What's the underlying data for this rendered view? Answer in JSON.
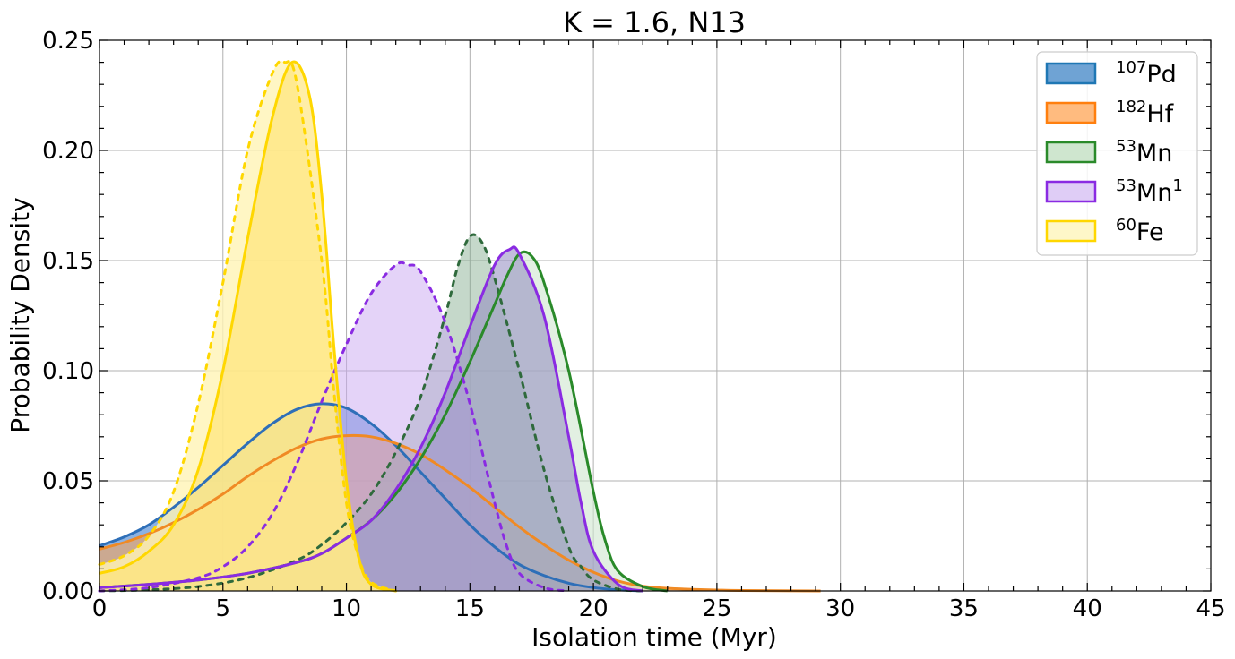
{
  "chart_data": {
    "type": "area",
    "title": "K = 1.6, N13",
    "xlabel": "Isolation time (Myr)",
    "ylabel": "Probability Density",
    "xlim": [
      0,
      45
    ],
    "ylim": [
      0,
      0.25
    ],
    "xticks": [
      "0",
      "5",
      "10",
      "15",
      "20",
      "25",
      "30",
      "35",
      "40",
      "45"
    ],
    "yticks": [
      "0.00",
      "0.05",
      "0.10",
      "0.15",
      "0.20",
      "0.25"
    ],
    "grid": true,
    "legend_position": "top-right",
    "legend": [
      {
        "sup": "107",
        "base": "Pd",
        "post": "",
        "color": "#1f77b4",
        "fill": "#6fa3d4"
      },
      {
        "sup": "182",
        "base": "Hf",
        "post": "",
        "color": "#ff7f0e",
        "fill": "#ffbb7f"
      },
      {
        "sup": "53",
        "base": "Mn",
        "post": "",
        "color": "#2a8a2a",
        "fill": "#cfe6cf"
      },
      {
        "sup": "53",
        "base": "Mn",
        "post": "1",
        "color": "#8a2be2",
        "fill": "#dfcdf6"
      },
      {
        "sup": "60",
        "base": "Fe",
        "post": "",
        "color": "#ffd700",
        "fill": "#fef7c8"
      }
    ],
    "series": [
      {
        "key": "pd_solid",
        "style": "solid",
        "stroke": "#2e6fb8",
        "fill": "#3f7fce",
        "opacity": 0.6,
        "points": [
          [
            0,
            0.0205
          ],
          [
            1,
            0.0245
          ],
          [
            2,
            0.03
          ],
          [
            3,
            0.038
          ],
          [
            4,
            0.047
          ],
          [
            5,
            0.057
          ],
          [
            6,
            0.067
          ],
          [
            7,
            0.076
          ],
          [
            8,
            0.0825
          ],
          [
            9,
            0.085
          ],
          [
            10,
            0.083
          ],
          [
            11,
            0.076
          ],
          [
            12,
            0.066
          ],
          [
            13,
            0.054
          ],
          [
            14,
            0.042
          ],
          [
            15,
            0.03
          ],
          [
            16,
            0.02
          ],
          [
            17,
            0.012
          ],
          [
            18,
            0.007
          ],
          [
            19,
            0.0035
          ],
          [
            20,
            0.0015
          ],
          [
            21,
            0.0005
          ],
          [
            22,
            0.0
          ]
        ]
      },
      {
        "key": "hf_solid",
        "style": "solid",
        "stroke": "#f08a24",
        "fill": "#f5a35c",
        "opacity": 0.6,
        "points": [
          [
            0,
            0.019
          ],
          [
            1,
            0.022
          ],
          [
            2,
            0.026
          ],
          [
            3,
            0.031
          ],
          [
            4,
            0.037
          ],
          [
            5,
            0.044
          ],
          [
            6,
            0.052
          ],
          [
            7,
            0.059
          ],
          [
            8,
            0.065
          ],
          [
            9,
            0.069
          ],
          [
            10,
            0.0705
          ],
          [
            11,
            0.07
          ],
          [
            12,
            0.067
          ],
          [
            13,
            0.062
          ],
          [
            14,
            0.055
          ],
          [
            15,
            0.047
          ],
          [
            16,
            0.038
          ],
          [
            17,
            0.029
          ],
          [
            18,
            0.021
          ],
          [
            19,
            0.014
          ],
          [
            20,
            0.0085
          ],
          [
            21,
            0.0045
          ],
          [
            22,
            0.0022
          ],
          [
            23,
            0.0012
          ],
          [
            24,
            0.0007
          ],
          [
            25,
            0.0004
          ],
          [
            26,
            0.0002
          ],
          [
            29.2,
            0.0
          ]
        ]
      },
      {
        "key": "mn_dashed",
        "style": "dashed",
        "stroke": "#2f6a3c",
        "fill": "#7fa88a",
        "opacity": 0.45,
        "points": [
          [
            0,
            0.0
          ],
          [
            2,
            0.0005
          ],
          [
            4,
            0.002
          ],
          [
            6,
            0.006
          ],
          [
            8,
            0.014
          ],
          [
            9,
            0.021
          ],
          [
            10,
            0.031
          ],
          [
            11,
            0.044
          ],
          [
            12,
            0.063
          ],
          [
            13,
            0.088
          ],
          [
            14,
            0.125
          ],
          [
            14.5,
            0.147
          ],
          [
            15,
            0.161
          ],
          [
            15.5,
            0.158
          ],
          [
            16,
            0.142
          ],
          [
            17,
            0.1
          ],
          [
            18,
            0.055
          ],
          [
            19,
            0.02
          ],
          [
            19.5,
            0.011
          ],
          [
            20,
            0.005
          ],
          [
            21,
            0.0008
          ],
          [
            22,
            0.0
          ]
        ]
      },
      {
        "key": "mn_solid",
        "style": "solid",
        "stroke": "#2a8a2a",
        "fill": "#cfe6cf",
        "opacity": 0.6,
        "points": [
          [
            0,
            0.0015
          ],
          [
            2,
            0.003
          ],
          [
            4,
            0.005
          ],
          [
            6,
            0.008
          ],
          [
            8,
            0.013
          ],
          [
            9,
            0.017
          ],
          [
            10,
            0.024
          ],
          [
            11,
            0.032
          ],
          [
            12,
            0.044
          ],
          [
            13,
            0.06
          ],
          [
            14,
            0.08
          ],
          [
            15,
            0.104
          ],
          [
            16,
            0.13
          ],
          [
            16.5,
            0.143
          ],
          [
            17,
            0.153
          ],
          [
            17.5,
            0.152
          ],
          [
            18,
            0.14
          ],
          [
            19,
            0.1
          ],
          [
            20,
            0.045
          ],
          [
            20.5,
            0.022
          ],
          [
            21,
            0.009
          ],
          [
            22,
            0.002
          ],
          [
            23,
            0.0
          ]
        ]
      },
      {
        "key": "mn1_dashed",
        "style": "dashed",
        "stroke": "#8a2be2",
        "fill": "#c9a8f1",
        "opacity": 0.5,
        "points": [
          [
            0,
            0.0
          ],
          [
            2,
            0.0015
          ],
          [
            4,
            0.006
          ],
          [
            5,
            0.011
          ],
          [
            6,
            0.02
          ],
          [
            7,
            0.035
          ],
          [
            8,
            0.058
          ],
          [
            9,
            0.086
          ],
          [
            10,
            0.112
          ],
          [
            11,
            0.135
          ],
          [
            12,
            0.148
          ],
          [
            12.5,
            0.148
          ],
          [
            13,
            0.145
          ],
          [
            14,
            0.122
          ],
          [
            15,
            0.085
          ],
          [
            16,
            0.04
          ],
          [
            16.5,
            0.02
          ],
          [
            17,
            0.008
          ],
          [
            18,
            0.0015
          ],
          [
            19,
            0.0
          ]
        ]
      },
      {
        "key": "mn1_solid",
        "style": "solid",
        "stroke": "#8a2be2",
        "fill": "#9088c0",
        "opacity": 0.55,
        "points": [
          [
            0,
            0.0015
          ],
          [
            2,
            0.003
          ],
          [
            4,
            0.005
          ],
          [
            6,
            0.008
          ],
          [
            8,
            0.013
          ],
          [
            9,
            0.017
          ],
          [
            10,
            0.024
          ],
          [
            11,
            0.032
          ],
          [
            12,
            0.046
          ],
          [
            13,
            0.065
          ],
          [
            14,
            0.09
          ],
          [
            15,
            0.12
          ],
          [
            16,
            0.148
          ],
          [
            16.6,
            0.155
          ],
          [
            17,
            0.153
          ],
          [
            18,
            0.125
          ],
          [
            19,
            0.07
          ],
          [
            19.5,
            0.04
          ],
          [
            20,
            0.018
          ],
          [
            21,
            0.003
          ],
          [
            22,
            0.0
          ]
        ]
      },
      {
        "key": "fe_dashed",
        "style": "dashed",
        "stroke": "#ffd700",
        "fill": "#fff4b5",
        "opacity": 0.8,
        "points": [
          [
            0,
            0.012
          ],
          [
            1,
            0.016
          ],
          [
            2,
            0.025
          ],
          [
            3,
            0.045
          ],
          [
            4,
            0.085
          ],
          [
            5,
            0.14
          ],
          [
            6,
            0.2
          ],
          [
            7,
            0.235
          ],
          [
            7.5,
            0.24
          ],
          [
            8,
            0.23
          ],
          [
            9,
            0.15
          ],
          [
            9.5,
            0.09
          ],
          [
            10,
            0.04
          ],
          [
            10.5,
            0.015
          ],
          [
            11,
            0.004
          ],
          [
            12,
            0.0
          ]
        ]
      },
      {
        "key": "fe_solid",
        "style": "solid",
        "stroke": "#ffd700",
        "fill": "#ffe36e",
        "opacity": 0.6,
        "points": [
          [
            0,
            0.008
          ],
          [
            1,
            0.011
          ],
          [
            2,
            0.018
          ],
          [
            3,
            0.03
          ],
          [
            4,
            0.055
          ],
          [
            5,
            0.1
          ],
          [
            6,
            0.16
          ],
          [
            7,
            0.215
          ],
          [
            7.8,
            0.24
          ],
          [
            8.5,
            0.225
          ],
          [
            9,
            0.18
          ],
          [
            9.5,
            0.11
          ],
          [
            10,
            0.05
          ],
          [
            10.5,
            0.015
          ],
          [
            11,
            0.003
          ],
          [
            12,
            0.0
          ]
        ]
      }
    ]
  }
}
